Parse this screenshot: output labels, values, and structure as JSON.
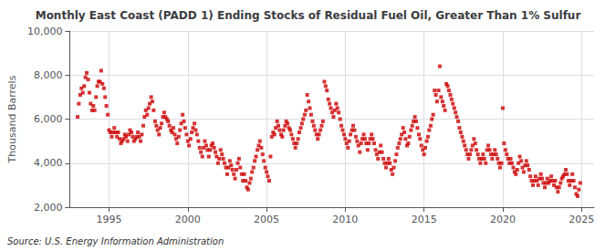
{
  "chart_data": {
    "type": "scatter",
    "title": "Monthly East Coast (PADD 1) Ending Stocks of Residual Fuel Oil, Greater Than 1% Sulfur",
    "ylabel": "Thousand Barrels",
    "annotation": "Source: U.S. Energy Information Administration",
    "color": "#CC0000",
    "marker": "square",
    "grid": true,
    "xlim": [
      1992.5,
      2025.8
    ],
    "xticks": [
      1995,
      2000,
      2005,
      2010,
      2015,
      2020,
      2025
    ],
    "ylim": [
      2000,
      10000
    ],
    "yticks": [
      {
        "value": 2000,
        "label": "2,000"
      },
      {
        "value": 4000,
        "label": "4,000"
      },
      {
        "value": 6000,
        "label": "6,000"
      },
      {
        "value": 8000,
        "label": "8,000"
      },
      {
        "value": 10000,
        "label": "10,000"
      }
    ],
    "x": [
      1993.0,
      1993.08,
      1993.17,
      1993.25,
      1993.33,
      1993.42,
      1993.5,
      1993.58,
      1993.67,
      1993.75,
      1993.83,
      1993.92,
      1994.0,
      1994.08,
      1994.17,
      1994.25,
      1994.33,
      1994.42,
      1994.5,
      1994.58,
      1994.67,
      1994.75,
      1994.83,
      1994.92,
      1995.0,
      1995.08,
      1995.17,
      1995.25,
      1995.33,
      1995.42,
      1995.5,
      1995.58,
      1995.67,
      1995.75,
      1995.83,
      1995.92,
      1996.0,
      1996.08,
      1996.17,
      1996.25,
      1996.33,
      1996.42,
      1996.5,
      1996.58,
      1996.67,
      1996.75,
      1996.83,
      1996.92,
      1997.0,
      1997.08,
      1997.17,
      1997.25,
      1997.33,
      1997.42,
      1997.5,
      1997.58,
      1997.67,
      1997.75,
      1997.83,
      1997.92,
      1998.0,
      1998.08,
      1998.17,
      1998.25,
      1998.33,
      1998.42,
      1998.5,
      1998.58,
      1998.67,
      1998.75,
      1998.83,
      1998.92,
      1999.0,
      1999.08,
      1999.17,
      1999.25,
      1999.33,
      1999.42,
      1999.5,
      1999.58,
      1999.67,
      1999.75,
      1999.83,
      1999.92,
      2000.0,
      2000.08,
      2000.17,
      2000.25,
      2000.33,
      2000.42,
      2000.5,
      2000.58,
      2000.67,
      2000.75,
      2000.83,
      2000.92,
      2001.0,
      2001.08,
      2001.17,
      2001.25,
      2001.33,
      2001.42,
      2001.5,
      2001.58,
      2001.67,
      2001.75,
      2001.83,
      2001.92,
      2002.0,
      2002.08,
      2002.17,
      2002.25,
      2002.33,
      2002.42,
      2002.5,
      2002.58,
      2002.67,
      2002.75,
      2002.83,
      2002.92,
      2003.0,
      2003.08,
      2003.17,
      2003.25,
      2003.33,
      2003.42,
      2003.5,
      2003.58,
      2003.67,
      2003.75,
      2003.83,
      2003.92,
      2004.0,
      2004.08,
      2004.17,
      2004.25,
      2004.33,
      2004.42,
      2004.5,
      2004.58,
      2004.67,
      2004.75,
      2004.83,
      2004.92,
      2005.0,
      2005.08,
      2005.17,
      2005.25,
      2005.33,
      2005.42,
      2005.5,
      2005.58,
      2005.67,
      2005.75,
      2005.83,
      2005.92,
      2006.0,
      2006.08,
      2006.17,
      2006.25,
      2006.33,
      2006.42,
      2006.5,
      2006.58,
      2006.67,
      2006.75,
      2006.83,
      2006.92,
      2007.0,
      2007.08,
      2007.17,
      2007.25,
      2007.33,
      2007.42,
      2007.5,
      2007.58,
      2007.67,
      2007.75,
      2007.83,
      2007.92,
      2008.0,
      2008.08,
      2008.17,
      2008.25,
      2008.33,
      2008.42,
      2008.5,
      2008.58,
      2008.67,
      2008.75,
      2008.83,
      2008.92,
      2009.0,
      2009.08,
      2009.17,
      2009.25,
      2009.33,
      2009.42,
      2009.5,
      2009.58,
      2009.67,
      2009.75,
      2009.83,
      2009.92,
      2010.0,
      2010.08,
      2010.17,
      2010.25,
      2010.33,
      2010.42,
      2010.5,
      2010.58,
      2010.67,
      2010.75,
      2010.83,
      2010.92,
      2011.0,
      2011.08,
      2011.17,
      2011.25,
      2011.33,
      2011.42,
      2011.5,
      2011.58,
      2011.67,
      2011.75,
      2011.83,
      2011.92,
      2012.0,
      2012.08,
      2012.17,
      2012.25,
      2012.33,
      2012.42,
      2012.5,
      2012.58,
      2012.67,
      2012.75,
      2012.83,
      2012.92,
      2013.0,
      2013.08,
      2013.17,
      2013.25,
      2013.33,
      2013.42,
      2013.5,
      2013.58,
      2013.67,
      2013.75,
      2013.83,
      2013.92,
      2014.0,
      2014.08,
      2014.17,
      2014.25,
      2014.33,
      2014.42,
      2014.5,
      2014.58,
      2014.67,
      2014.75,
      2014.83,
      2014.92,
      2015.0,
      2015.08,
      2015.17,
      2015.25,
      2015.33,
      2015.42,
      2015.5,
      2015.58,
      2015.67,
      2015.75,
      2015.83,
      2015.92,
      2016.0,
      2016.08,
      2016.17,
      2016.25,
      2016.33,
      2016.42,
      2016.5,
      2016.58,
      2016.67,
      2016.75,
      2016.83,
      2016.92,
      2017.0,
      2017.08,
      2017.17,
      2017.25,
      2017.33,
      2017.42,
      2017.5,
      2017.58,
      2017.67,
      2017.75,
      2017.83,
      2017.92,
      2018.0,
      2018.08,
      2018.17,
      2018.25,
      2018.33,
      2018.42,
      2018.5,
      2018.58,
      2018.67,
      2018.75,
      2018.83,
      2018.92,
      2019.0,
      2019.08,
      2019.17,
      2019.25,
      2019.33,
      2019.42,
      2019.5,
      2019.58,
      2019.67,
      2019.75,
      2019.83,
      2019.92,
      2020.0,
      2020.08,
      2020.17,
      2020.25,
      2020.33,
      2020.42,
      2020.5,
      2020.58,
      2020.67,
      2020.75,
      2020.83,
      2020.92,
      2021.0,
      2021.08,
      2021.17,
      2021.25,
      2021.33,
      2021.42,
      2021.5,
      2021.58,
      2021.67,
      2021.75,
      2021.83,
      2021.92,
      2022.0,
      2022.08,
      2022.17,
      2022.25,
      2022.33,
      2022.42,
      2022.5,
      2022.58,
      2022.67,
      2022.75,
      2022.83,
      2022.92,
      2023.0,
      2023.08,
      2023.17,
      2023.25,
      2023.33,
      2023.42,
      2023.5,
      2023.58,
      2023.67,
      2023.75,
      2023.83,
      2023.92,
      2024.0,
      2024.08,
      2024.17,
      2024.25,
      2024.33,
      2024.42,
      2024.5,
      2024.58,
      2024.67,
      2024.75,
      2024.83,
      2024.92
    ],
    "values": [
      6100,
      6700,
      7100,
      7400,
      7200,
      7500,
      7900,
      8100,
      7800,
      7200,
      6700,
      6400,
      6600,
      6400,
      7000,
      7500,
      7700,
      7700,
      8200,
      7600,
      7400,
      7000,
      6600,
      6200,
      5500,
      5400,
      5200,
      5400,
      5600,
      5400,
      5200,
      5400,
      5100,
      4900,
      5000,
      5100,
      5300,
      5200,
      5000,
      5300,
      5500,
      5400,
      5200,
      5000,
      5100,
      5200,
      5400,
      5200,
      5000,
      5300,
      5700,
      6100,
      6400,
      6200,
      6500,
      6700,
      7000,
      6800,
      6400,
      5900,
      5700,
      5500,
      5300,
      5600,
      5800,
      6100,
      6300,
      6100,
      6000,
      5900,
      5700,
      5500,
      5400,
      5600,
      5300,
      5100,
      4900,
      5200,
      5500,
      5800,
      6200,
      5900,
      5600,
      5300,
      5000,
      4800,
      5100,
      5400,
      5600,
      5800,
      5500,
      5300,
      5000,
      4700,
      4500,
      4300,
      4700,
      5000,
      4800,
      4600,
      4300,
      4600,
      4800,
      4900,
      4700,
      4500,
      4300,
      4000,
      4200,
      4600,
      4400,
      4200,
      4000,
      3800,
      3500,
      3800,
      4100,
      3900,
      3700,
      3500,
      3300,
      3700,
      4000,
      4200,
      3800,
      3500,
      3200,
      3500,
      3200,
      2900,
      2800,
      3100,
      3300,
      3600,
      3800,
      4100,
      4300,
      4600,
      4800,
      5000,
      4700,
      4400,
      4100,
      3800,
      3600,
      3400,
      3200,
      4300,
      5200,
      5400,
      5300,
      5600,
      5900,
      5700,
      5500,
      5300,
      5200,
      5500,
      5700,
      5900,
      5800,
      5600,
      5500,
      5300,
      5100,
      4900,
      4700,
      4900,
      5100,
      5400,
      5600,
      5800,
      6000,
      6200,
      6400,
      7100,
      6800,
      6500,
      6200,
      5900,
      5700,
      5500,
      5300,
      5100,
      5300,
      5500,
      5700,
      5900,
      7700,
      7500,
      7300,
      6900,
      6700,
      6500,
      6300,
      6100,
      6400,
      6700,
      6500,
      6300,
      6000,
      5700,
      5500,
      5300,
      5100,
      4900,
      4700,
      5000,
      5300,
      5500,
      5700,
      5500,
      5200,
      5000,
      4800,
      4500,
      4900,
      5100,
      5300,
      5100,
      4900,
      4600,
      4900,
      5100,
      5300,
      5100,
      4900,
      4600,
      4400,
      4200,
      4500,
      4800,
      4500,
      4200,
      4000,
      3800,
      4000,
      4200,
      4000,
      3700,
      3500,
      3800,
      4100,
      4400,
      4700,
      4900,
      5100,
      5300,
      5600,
      5400,
      5100,
      4800,
      4900,
      5200,
      5500,
      5700,
      5900,
      6100,
      5900,
      5600,
      5300,
      5100,
      4800,
      4600,
      4400,
      4700,
      5000,
      5200,
      5500,
      5700,
      6000,
      6200,
      7300,
      7100,
      6800,
      7300,
      8400,
      7000,
      6800,
      6600,
      6400,
      7600,
      7500,
      7300,
      7100,
      6900,
      6700,
      6500,
      6300,
      6100,
      5900,
      5600,
      5400,
      5200,
      5000,
      4800,
      4600,
      4400,
      4200,
      4400,
      4600,
      4800,
      5100,
      4900,
      4600,
      4400,
      4200,
      4000,
      4200,
      4400,
      4200,
      4000,
      4600,
      4800,
      4600,
      4400,
      4200,
      4400,
      4600,
      4400,
      4200,
      4000,
      3800,
      4000,
      6500,
      4900,
      4600,
      4400,
      4200,
      4000,
      4200,
      4000,
      3800,
      3600,
      3500,
      3700,
      4000,
      4300,
      4100,
      3800,
      3600,
      3900,
      4100,
      3900,
      3700,
      3400,
      3200,
      3000,
      3200,
      3400,
      3200,
      3000,
      3300,
      3500,
      3300,
      3100,
      2900,
      3100,
      3300,
      3100,
      3200,
      3400,
      3200,
      3000,
      3200,
      2900,
      2700,
      2900,
      3100,
      3300,
      3400,
      3500,
      3700,
      3500,
      3200,
      3000,
      3200,
      3500,
      3200,
      2900,
      2600,
      2500,
      2800,
      3100
    ]
  }
}
